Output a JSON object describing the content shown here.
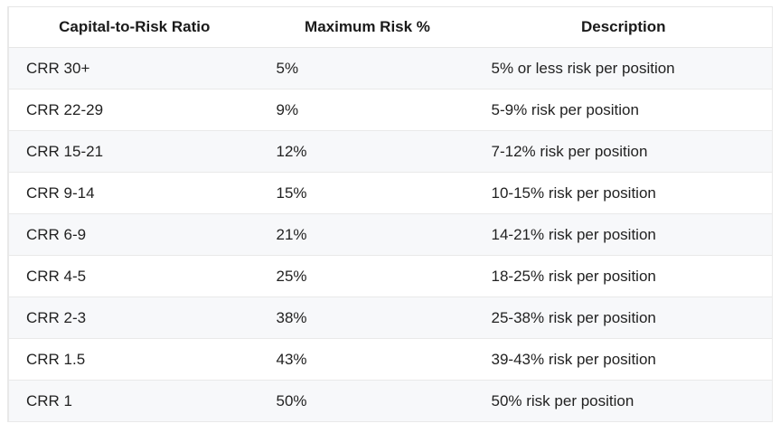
{
  "table": {
    "headers": [
      "Capital-to-Risk Ratio",
      "Maximum Risk %",
      "Description"
    ],
    "rows": [
      [
        "CRR 30+",
        "5%",
        "5% or less risk per position"
      ],
      [
        "CRR 22-29",
        "9%",
        "5-9% risk per position"
      ],
      [
        "CRR 15-21",
        "12%",
        "7-12% risk per position"
      ],
      [
        "CRR 9-14",
        "15%",
        "10-15% risk per position"
      ],
      [
        "CRR 6-9",
        "21%",
        "14-21% risk per position"
      ],
      [
        "CRR 4-5",
        "25%",
        "18-25% risk per position"
      ],
      [
        "CRR 2-3",
        "38%",
        "25-38% risk per position"
      ],
      [
        "CRR 1.5",
        "43%",
        "39-43% risk per position"
      ],
      [
        "CRR 1",
        "50%",
        "50% risk per position"
      ]
    ]
  }
}
